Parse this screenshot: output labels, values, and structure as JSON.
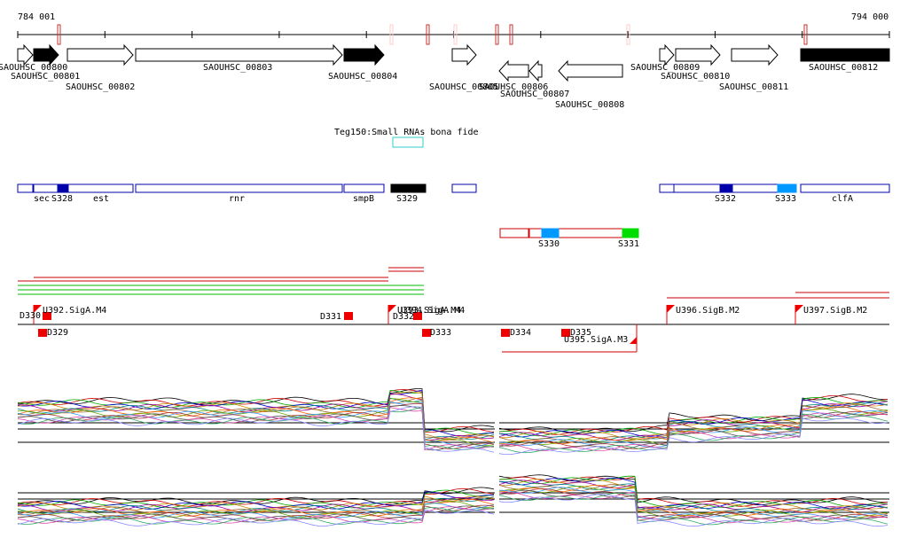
{
  "ruler": {
    "start": "784 001",
    "end": "794 000"
  },
  "genes": [
    "SAOUHSC_00800",
    "SAOUHSC_00801",
    "SAOUHSC_00802",
    "SAOUHSC_00803",
    "SAOUHSC_00804",
    "SAOUHSC_00805",
    "SAOUHSC_00806",
    "SAOUHSC_00807",
    "SAOUHSC_00808",
    "SAOUHSC_00809",
    "SAOUHSC_00810",
    "SAOUHSC_00811",
    "SAOUHSC_00812"
  ],
  "track_label": "Teg150:Small RNAs bona fide",
  "features": [
    "sec",
    "S328",
    "est",
    "rnr",
    "smpB",
    "S329",
    "S332",
    "S333",
    "clfA"
  ],
  "features2": [
    "S330",
    "S331"
  ],
  "promoters": [
    "D330",
    "U392.SigA.M4",
    "D329",
    "D331",
    "U393.SigA.M4",
    "U394.SigA.M4",
    "D332",
    "D333",
    "D334",
    "D335",
    "U395.SigA.M3",
    "U396.SigB.M2",
    "U397.SigB.M2"
  ]
}
